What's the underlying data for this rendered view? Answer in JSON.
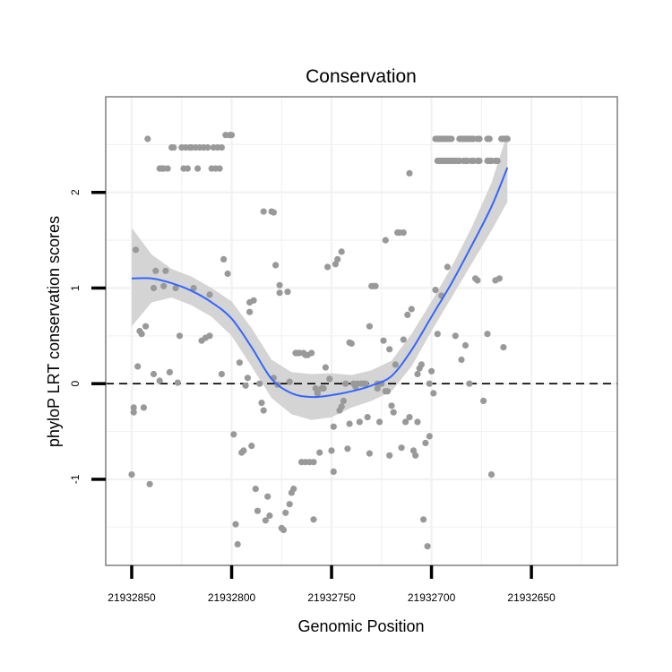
{
  "chart_data": {
    "type": "scatter",
    "title": "Conservation",
    "xlabel": "Genomic Position",
    "ylabel": "phyloP LRT conservation scores",
    "x_reversed": true,
    "xlim": [
      21932863,
      21932607
    ],
    "ylim": [
      -1.9,
      3.0
    ],
    "x_ticks": [
      21932850,
      21932800,
      21932750,
      21932700,
      21932650
    ],
    "x_tick_labels": [
      "21932850",
      "21932800",
      "21932750",
      "21932700",
      "21932650"
    ],
    "y_ticks": [
      -1,
      0,
      1,
      2
    ],
    "y_tick_labels": [
      "-1",
      "0",
      "1",
      "2"
    ],
    "reference_line": {
      "y": 0,
      "style": "dashed"
    },
    "grid": true,
    "colors": {
      "points": "#999999",
      "smooth_line": "#3366ff",
      "confidence_band": "#d4d4d4",
      "panel_border": "#7f7f7f",
      "grid": "#f2f2f2"
    },
    "points": [
      [
        21932850,
        -0.95
      ],
      [
        21932849,
        -0.3
      ],
      [
        21932849,
        -0.25
      ],
      [
        21932848,
        1.4
      ],
      [
        21932847,
        0.18
      ],
      [
        21932846,
        0.55
      ],
      [
        21932845,
        0.52
      ],
      [
        21932844,
        -0.25
      ],
      [
        21932843,
        0.6
      ],
      [
        21932842,
        2.56
      ],
      [
        21932841,
        -1.05
      ],
      [
        21932839,
        1.0
      ],
      [
        21932839,
        0.1
      ],
      [
        21932838,
        1.18
      ],
      [
        21932836,
        0.03
      ],
      [
        21932836,
        2.25
      ],
      [
        21932835,
        2.25
      ],
      [
        21932834,
        1.02
      ],
      [
        21932834,
        2.25
      ],
      [
        21932833,
        1.18
      ],
      [
        21932832,
        2.25
      ],
      [
        21932831,
        0.12
      ],
      [
        21932830,
        2.47
      ],
      [
        21932829,
        2.47
      ],
      [
        21932828,
        1.0
      ],
      [
        21932827,
        0.01
      ],
      [
        21932826,
        0.5
      ],
      [
        21932825,
        2.47
      ],
      [
        21932824,
        2.25
      ],
      [
        21932823,
        2.47
      ],
      [
        21932822,
        2.25
      ],
      [
        21932821,
        2.47
      ],
      [
        21932820,
        2.47
      ],
      [
        21932819,
        1.0
      ],
      [
        21932818,
        2.47
      ],
      [
        21932817,
        2.25
      ],
      [
        21932816,
        2.47
      ],
      [
        21932815,
        0.45
      ],
      [
        21932814,
        2.47
      ],
      [
        21932813,
        0.48
      ],
      [
        21932812,
        2.47
      ],
      [
        21932811,
        0.5
      ],
      [
        21932811,
        0.93
      ],
      [
        21932810,
        2.25
      ],
      [
        21932809,
        2.47
      ],
      [
        21932808,
        2.25
      ],
      [
        21932807,
        2.47
      ],
      [
        21932806,
        2.25
      ],
      [
        21932805,
        2.47
      ],
      [
        21932805,
        0.1
      ],
      [
        21932804,
        1.3
      ],
      [
        21932803,
        2.6
      ],
      [
        21932802,
        1.15
      ],
      [
        21932801,
        2.6
      ],
      [
        21932800,
        2.6
      ],
      [
        21932799,
        -0.53
      ],
      [
        21932798,
        -1.47
      ],
      [
        21932797,
        -1.68
      ],
      [
        21932796,
        0.22
      ],
      [
        21932795,
        -0.72
      ],
      [
        21932794,
        -0.7
      ],
      [
        21932793,
        -0.02
      ],
      [
        21932792,
        0.06
      ],
      [
        21932791,
        0.85
      ],
      [
        21932791,
        0.75
      ],
      [
        21932790,
        -0.65
      ],
      [
        21932789,
        0.87
      ],
      [
        21932788,
        -1.1
      ],
      [
        21932787,
        -1.33
      ],
      [
        21932786,
        0.0
      ],
      [
        21932785,
        -0.2
      ],
      [
        21932784,
        -0.28
      ],
      [
        21932784,
        1.8
      ],
      [
        21932783,
        -1.43
      ],
      [
        21932782,
        -1.18
      ],
      [
        21932781,
        -1.38
      ],
      [
        21932780,
        1.8
      ],
      [
        21932779,
        0.06
      ],
      [
        21932779,
        1.79
      ],
      [
        21932778,
        1.24
      ],
      [
        21932777,
        -0.01
      ],
      [
        21932776,
        0.95
      ],
      [
        21932776,
        1.03
      ],
      [
        21932775,
        -1.51
      ],
      [
        21932774,
        -1.53
      ],
      [
        21932773,
        -1.35
      ],
      [
        21932772,
        0.96
      ],
      [
        21932771,
        0.02
      ],
      [
        21932771,
        -1.26
      ],
      [
        21932770,
        -1.14
      ],
      [
        21932769,
        -1.1
      ],
      [
        21932768,
        0.32
      ],
      [
        21932767,
        0.32
      ],
      [
        21932766,
        0.32
      ],
      [
        21932765,
        -0.82
      ],
      [
        21932764,
        0.32
      ],
      [
        21932763,
        -0.82
      ],
      [
        21932763,
        0.3
      ],
      [
        21932762,
        0.3
      ],
      [
        21932761,
        -0.82
      ],
      [
        21932760,
        0.32
      ],
      [
        21932759,
        -0.82
      ],
      [
        21932759,
        -1.42
      ],
      [
        21932758,
        -0.05
      ],
      [
        21932757,
        -0.1
      ],
      [
        21932756,
        -0.72
      ],
      [
        21932755,
        -0.05
      ],
      [
        21932754,
        -0.05
      ],
      [
        21932753,
        0.17
      ],
      [
        21932752,
        1.22
      ],
      [
        21932751,
        0.05
      ],
      [
        21932750,
        -0.7
      ],
      [
        21932749,
        -0.92
      ],
      [
        21932749,
        -0.45
      ],
      [
        21932748,
        1.25
      ],
      [
        21932747,
        1.3
      ],
      [
        21932746,
        -0.28
      ],
      [
        21932745,
        1.38
      ],
      [
        21932745,
        -0.24
      ],
      [
        21932744,
        -0.18
      ],
      [
        21932743,
        0.0
      ],
      [
        21932742,
        -0.68
      ],
      [
        21932741,
        0.43
      ],
      [
        21932741,
        -0.42
      ],
      [
        21932740,
        0.42
      ],
      [
        21932739,
        0.0
      ],
      [
        21932738,
        -0.03
      ],
      [
        21932737,
        0.0
      ],
      [
        21932736,
        -0.4
      ],
      [
        21932735,
        0.0
      ],
      [
        21932734,
        0.0
      ],
      [
        21932733,
        0.0
      ],
      [
        21932732,
        -0.35
      ],
      [
        21932731,
        0.6
      ],
      [
        21932731,
        -0.73
      ],
      [
        21932730,
        1.02
      ],
      [
        21932729,
        1.02
      ],
      [
        21932728,
        1.02
      ],
      [
        21932727,
        -0.05
      ],
      [
        21932727,
        0.0
      ],
      [
        21932726,
        -0.4
      ],
      [
        21932725,
        0.0
      ],
      [
        21932724,
        0.45
      ],
      [
        21932723,
        1.5
      ],
      [
        21932723,
        -0.08
      ],
      [
        21932722,
        -0.08
      ],
      [
        21932721,
        -0.75
      ],
      [
        21932721,
        0.36
      ],
      [
        21932720,
        -0.23
      ],
      [
        21932719,
        -0.3
      ],
      [
        21932718,
        0.2
      ],
      [
        21932717,
        1.58
      ],
      [
        21932716,
        1.58
      ],
      [
        21932715,
        -0.67
      ],
      [
        21932714,
        1.58
      ],
      [
        21932714,
        0.46
      ],
      [
        21932713,
        -0.4
      ],
      [
        21932712,
        0.72
      ],
      [
        21932711,
        -0.35
      ],
      [
        21932711,
        2.2
      ],
      [
        21932710,
        0.78
      ],
      [
        21932709,
        -0.7
      ],
      [
        21932708,
        -0.75
      ],
      [
        21932707,
        -0.4
      ],
      [
        21932707,
        0.1
      ],
      [
        21932706,
        0.16
      ],
      [
        21932705,
        0.2
      ],
      [
        21932704,
        -1.42
      ],
      [
        21932703,
        -0.62
      ],
      [
        21932702,
        -1.7
      ],
      [
        21932701,
        -0.55
      ],
      [
        21932701,
        0.0
      ],
      [
        21932700,
        0.13
      ],
      [
        21932699,
        -0.1
      ],
      [
        21932698,
        0.98
      ],
      [
        21932697,
        0.52
      ],
      [
        21932695,
        0.92
      ],
      [
        21932692,
        1.22
      ],
      [
        21932688,
        0.5
      ],
      [
        21932685,
        0.25
      ],
      [
        21932683,
        0.4
      ],
      [
        21932681,
        0.0
      ],
      [
        21932678,
        1.1
      ],
      [
        21932677,
        1.08
      ],
      [
        21932674,
        -0.18
      ],
      [
        21932672,
        0.52
      ],
      [
        21932670,
        -0.95
      ],
      [
        21932668,
        1.08
      ],
      [
        21932666,
        1.1
      ],
      [
        21932664,
        0.38
      ],
      [
        21932698,
        2.56
      ],
      [
        21932697,
        2.56
      ],
      [
        21932696,
        2.56
      ],
      [
        21932695,
        2.56
      ],
      [
        21932694,
        2.56
      ],
      [
        21932693,
        2.56
      ],
      [
        21932692,
        2.56
      ],
      [
        21932691,
        2.56
      ],
      [
        21932690,
        2.56
      ],
      [
        21932686,
        2.56
      ],
      [
        21932685,
        2.56
      ],
      [
        21932684,
        2.56
      ],
      [
        21932683,
        2.56
      ],
      [
        21932682,
        2.56
      ],
      [
        21932681,
        2.56
      ],
      [
        21932680,
        2.56
      ],
      [
        21932679,
        2.56
      ],
      [
        21932677,
        2.56
      ],
      [
        21932676,
        2.56
      ],
      [
        21932672,
        2.56
      ],
      [
        21932671,
        2.56
      ],
      [
        21932665,
        2.56
      ],
      [
        21932664,
        2.56
      ],
      [
        21932663,
        2.56
      ],
      [
        21932662,
        2.56
      ],
      [
        21932697,
        2.33
      ],
      [
        21932696,
        2.33
      ],
      [
        21932695,
        2.33
      ],
      [
        21932694,
        2.33
      ],
      [
        21932693,
        2.33
      ],
      [
        21932692,
        2.33
      ],
      [
        21932691,
        2.33
      ],
      [
        21932690,
        2.33
      ],
      [
        21932689,
        2.33
      ],
      [
        21932688,
        2.33
      ],
      [
        21932687,
        2.33
      ],
      [
        21932686,
        2.33
      ],
      [
        21932684,
        2.33
      ],
      [
        21932683,
        2.33
      ],
      [
        21932682,
        2.33
      ],
      [
        21932680,
        2.33
      ],
      [
        21932679,
        2.33
      ],
      [
        21932677,
        2.33
      ],
      [
        21932676,
        2.33
      ],
      [
        21932672,
        2.33
      ],
      [
        21932671,
        2.33
      ],
      [
        21932670,
        2.33
      ],
      [
        21932668,
        2.33
      ],
      [
        21932667,
        2.33
      ]
    ],
    "smooth": {
      "x": [
        21932850,
        21932840,
        21932830,
        21932820,
        21932810,
        21932800,
        21932790,
        21932780,
        21932770,
        21932760,
        21932750,
        21932740,
        21932730,
        21932720,
        21932710,
        21932700,
        21932690,
        21932680,
        21932670,
        21932662
      ],
      "y": [
        1.1,
        1.1,
        1.05,
        0.97,
        0.85,
        0.68,
        0.38,
        0.05,
        -0.1,
        -0.14,
        -0.12,
        -0.08,
        -0.02,
        0.08,
        0.35,
        0.7,
        1.05,
        1.44,
        1.85,
        2.26
      ],
      "lower": [
        0.6,
        0.85,
        0.9,
        0.82,
        0.7,
        0.5,
        0.18,
        -0.15,
        -0.32,
        -0.38,
        -0.35,
        -0.25,
        -0.18,
        -0.08,
        0.18,
        0.55,
        0.9,
        1.25,
        1.6,
        1.9
      ],
      "upper": [
        1.63,
        1.35,
        1.2,
        1.12,
        1.0,
        0.86,
        0.58,
        0.25,
        0.12,
        0.1,
        0.11,
        0.09,
        0.14,
        0.24,
        0.52,
        0.86,
        1.22,
        1.63,
        2.1,
        2.62
      ]
    }
  }
}
